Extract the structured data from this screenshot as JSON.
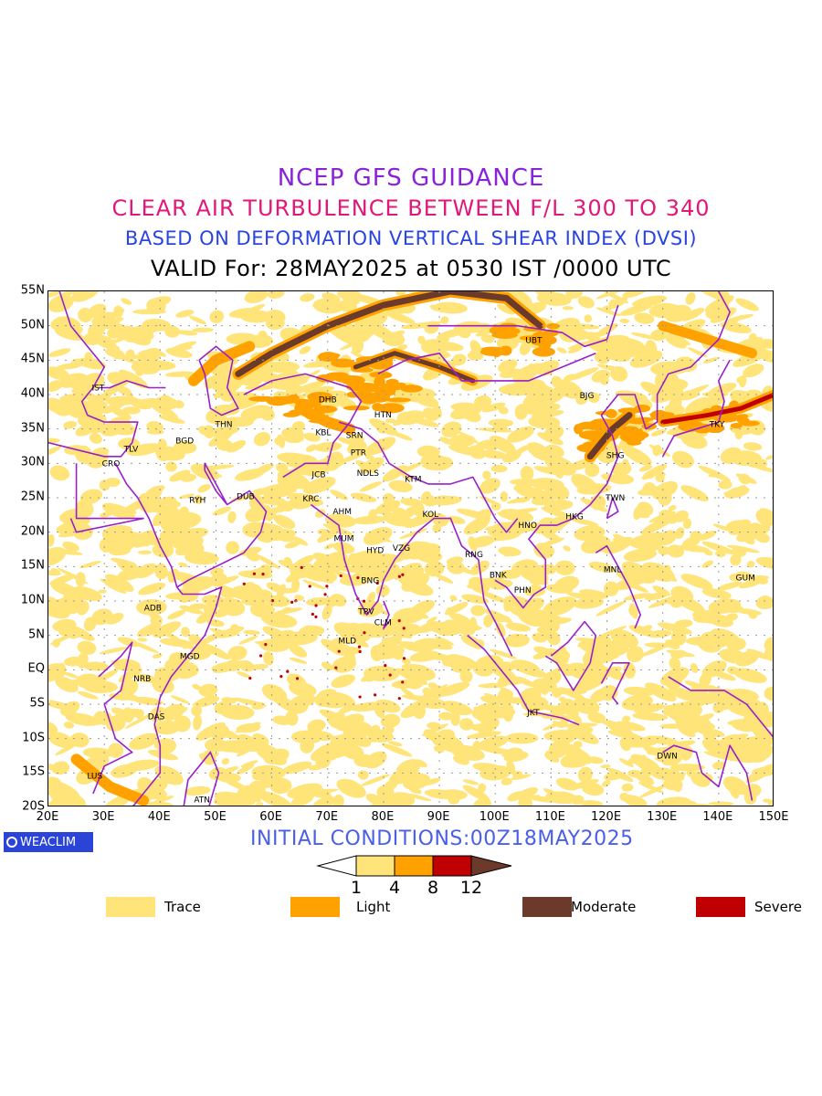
{
  "titles": {
    "line1": "NCEP GFS GUIDANCE",
    "line2": "CLEAR AIR TURBULENCE BETWEEN F/L 300 TO 340",
    "line3": "BASED ON DEFORMATION VERTICAL SHEAR INDEX (DVSI)",
    "line4": "VALID For: 28MAY2025 at 0530 IST /0000 UTC"
  },
  "title_colors": {
    "line1": "#8a22d8",
    "line2": "#e0187a",
    "line3": "#2a44e0",
    "line4": "#000000"
  },
  "axes": {
    "lat_labels": [
      "55N",
      "50N",
      "45N",
      "40N",
      "35N",
      "30N",
      "25N",
      "20N",
      "15N",
      "10N",
      "5N",
      "EQ",
      "5S",
      "10S",
      "15S",
      "20S"
    ],
    "lon_labels": [
      "20E",
      "30E",
      "40E",
      "50E",
      "60E",
      "70E",
      "80E",
      "90E",
      "100E",
      "110E",
      "120E",
      "130E",
      "140E",
      "150E"
    ],
    "lat_range": [
      -20,
      55
    ],
    "lon_range": [
      20,
      150
    ]
  },
  "stations": [
    {
      "code": "IST",
      "lon": 28.9,
      "lat": 41.0
    },
    {
      "code": "TLV",
      "lon": 34.8,
      "lat": 32.1
    },
    {
      "code": "CRO",
      "lon": 31.2,
      "lat": 30.0
    },
    {
      "code": "BGD",
      "lon": 44.4,
      "lat": 33.3
    },
    {
      "code": "THN",
      "lon": 51.4,
      "lat": 35.7
    },
    {
      "code": "RYH",
      "lon": 46.7,
      "lat": 24.7
    },
    {
      "code": "DUB",
      "lon": 55.3,
      "lat": 25.2
    },
    {
      "code": "DHB",
      "lon": 70.0,
      "lat": 39.3
    },
    {
      "code": "KBL",
      "lon": 69.2,
      "lat": 34.5
    },
    {
      "code": "SRN",
      "lon": 74.8,
      "lat": 34.1
    },
    {
      "code": "HTN",
      "lon": 79.9,
      "lat": 37.1
    },
    {
      "code": "PTR",
      "lon": 75.5,
      "lat": 31.6
    },
    {
      "code": "JCB",
      "lon": 68.4,
      "lat": 28.4
    },
    {
      "code": "NDLS",
      "lon": 77.2,
      "lat": 28.6
    },
    {
      "code": "KTM",
      "lon": 85.3,
      "lat": 27.7
    },
    {
      "code": "KRC",
      "lon": 67.0,
      "lat": 24.9
    },
    {
      "code": "AHM",
      "lon": 72.6,
      "lat": 23.0
    },
    {
      "code": "KOL",
      "lon": 88.4,
      "lat": 22.6
    },
    {
      "code": "MUM",
      "lon": 72.9,
      "lat": 19.1
    },
    {
      "code": "HYD",
      "lon": 78.5,
      "lat": 17.4
    },
    {
      "code": "VZG",
      "lon": 83.2,
      "lat": 17.7
    },
    {
      "code": "BNG",
      "lon": 77.6,
      "lat": 13.0
    },
    {
      "code": "TRV",
      "lon": 76.9,
      "lat": 8.5
    },
    {
      "code": "CLM",
      "lon": 79.9,
      "lat": 6.9
    },
    {
      "code": "MLD",
      "lon": 73.5,
      "lat": 4.2
    },
    {
      "code": "RNG",
      "lon": 96.2,
      "lat": 16.8
    },
    {
      "code": "BNK",
      "lon": 100.5,
      "lat": 13.8
    },
    {
      "code": "PHN",
      "lon": 104.9,
      "lat": 11.6
    },
    {
      "code": "HNO",
      "lon": 105.8,
      "lat": 21.0
    },
    {
      "code": "HKG",
      "lon": 114.2,
      "lat": 22.3
    },
    {
      "code": "TWN",
      "lon": 121.5,
      "lat": 25.0
    },
    {
      "code": "SHG",
      "lon": 121.5,
      "lat": 31.2
    },
    {
      "code": "BJG",
      "lon": 116.4,
      "lat": 39.9
    },
    {
      "code": "UBT",
      "lon": 106.9,
      "lat": 47.9
    },
    {
      "code": "TKY",
      "lon": 139.7,
      "lat": 35.7
    },
    {
      "code": "MNL",
      "lon": 121.0,
      "lat": 14.6
    },
    {
      "code": "GUM",
      "lon": 144.8,
      "lat": 13.4
    },
    {
      "code": "JKT",
      "lon": 106.8,
      "lat": -6.2
    },
    {
      "code": "DWN",
      "lon": 130.8,
      "lat": -12.5
    },
    {
      "code": "ADB",
      "lon": 38.7,
      "lat": 9.0
    },
    {
      "code": "MGD",
      "lon": 45.3,
      "lat": 2.0
    },
    {
      "code": "NRB",
      "lon": 36.8,
      "lat": -1.3
    },
    {
      "code": "DAS",
      "lon": 39.3,
      "lat": -6.8
    },
    {
      "code": "LUS",
      "lon": 28.3,
      "lat": -15.4
    },
    {
      "code": "ATN",
      "lon": 47.5,
      "lat": -18.9
    }
  ],
  "footer": {
    "badge": "WEACLIM",
    "initial_conditions": "INITIAL CONDITIONS:00Z18MAY2025",
    "initial_color": "#4a5fe8"
  },
  "colorbar": {
    "ticks": [
      "1",
      "4",
      "8",
      "12"
    ],
    "colors": [
      "#ffffff",
      "#ffe47a",
      "#ffa200",
      "#c00000",
      "#6b3a2a"
    ]
  },
  "legend": [
    {
      "label": "Trace",
      "color": "#ffe47a"
    },
    {
      "label": "Light",
      "color": "#ffa200"
    },
    {
      "label": "Moderate",
      "color": "#6b3a2a"
    },
    {
      "label": "Severe",
      "color": "#c00000"
    }
  ],
  "map_colors": {
    "trace": "#ffe47a",
    "light": "#ffa200",
    "moderate": "#6b3a2a",
    "severe": "#c00000",
    "borders": "#9b1fc8",
    "grid": "#9a9a9a"
  }
}
